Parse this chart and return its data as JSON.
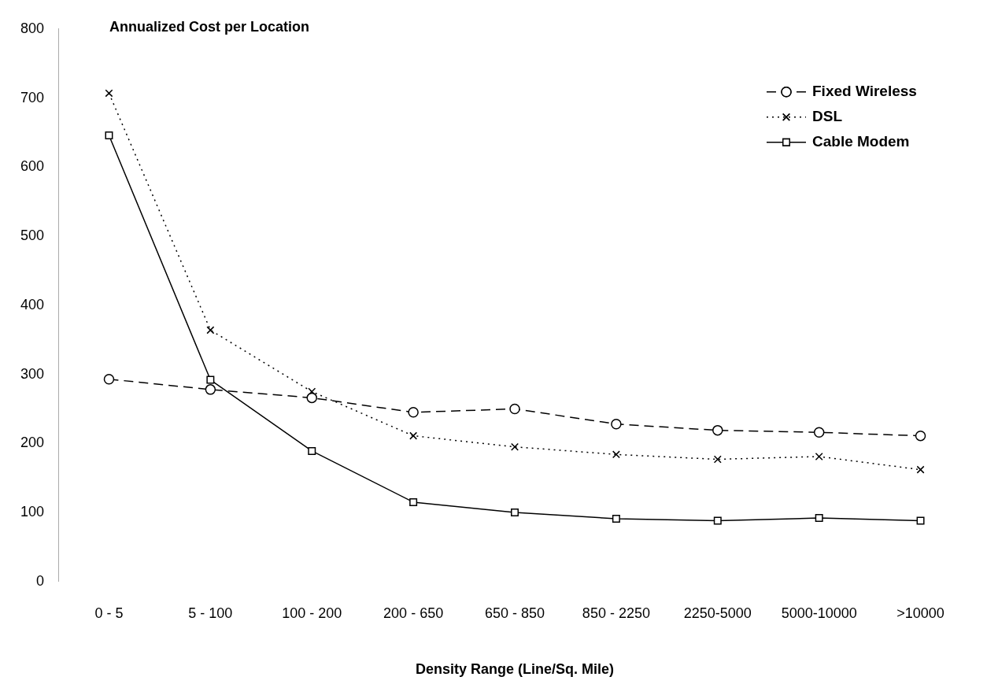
{
  "chart_data": {
    "type": "line",
    "ylabel": "Annualized Cost per Location",
    "xlabel": "Density Range (Line/Sq. Mile)",
    "categories": [
      "0 - 5",
      "5 - 100",
      "100 - 200",
      "200 - 650",
      "650 - 850",
      "850 - 2250",
      "2250-5000",
      "5000-10000",
      ">10000"
    ],
    "series": [
      {
        "name": "Fixed Wireless",
        "color": "#000000",
        "marker": "circle",
        "line_style": "dashed",
        "values": [
          293,
          278,
          266,
          245,
          250,
          228,
          219,
          216,
          211
        ]
      },
      {
        "name": "DSL",
        "color": "#000000",
        "marker": "cross",
        "line_style": "dotted",
        "values": [
          707,
          364,
          275,
          211,
          195,
          184,
          177,
          181,
          162
        ]
      },
      {
        "name": "Cable Modem",
        "color": "#000000",
        "marker": "square",
        "line_style": "solid",
        "values": [
          646,
          292,
          189,
          115,
          100,
          91,
          88,
          92,
          88
        ]
      }
    ],
    "ylim": [
      0,
      800
    ],
    "yticks": [
      0,
      100,
      200,
      300,
      400,
      500,
      600,
      700,
      800
    ],
    "grid": false,
    "legend": "top right"
  }
}
